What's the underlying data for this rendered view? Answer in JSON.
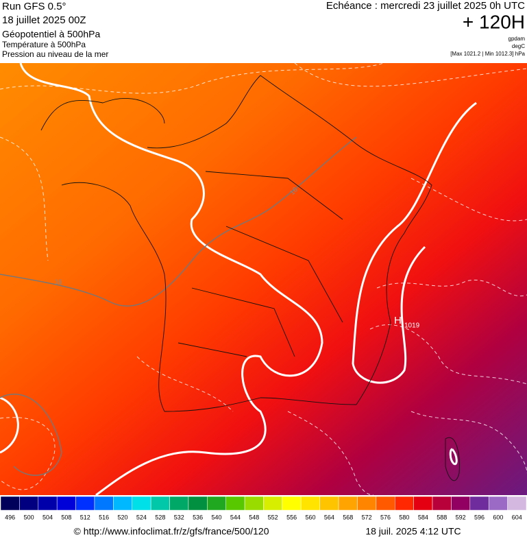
{
  "header": {
    "run": "Run GFS 0.5°",
    "date": "18 juillet 2025 00Z",
    "layer1": "Géopotentiel à 500hPa",
    "layer2": "Température à 500hPa",
    "layer3": "Pression au niveau de la mer",
    "echeance": "Echéance : mercredi 23 juillet 2025 0h UTC",
    "lead": "+ 120H",
    "unit1": "gpdam",
    "unit2": "degC",
    "extremes": "[Max 1021.2 | Min 1012.3] hPa"
  },
  "map": {
    "labels": [
      "16",
      "16"
    ],
    "high": {
      "symbol": "H",
      "value": "1019"
    }
  },
  "colorbar": {
    "ticks": [
      496,
      500,
      504,
      508,
      512,
      516,
      520,
      524,
      528,
      532,
      536,
      540,
      544,
      548,
      552,
      556,
      560,
      564,
      568,
      572,
      576,
      580,
      584,
      588,
      592,
      596,
      600,
      604
    ],
    "colors": [
      "#00005a",
      "#000080",
      "#0000aa",
      "#0000d8",
      "#0030ff",
      "#0078ff",
      "#00b8ff",
      "#00e0e8",
      "#00c8a8",
      "#00a868",
      "#009040",
      "#20a820",
      "#58c800",
      "#98dc00",
      "#d8ee00",
      "#ffff00",
      "#ffe400",
      "#ffc400",
      "#ffa400",
      "#ff8400",
      "#ff5a00",
      "#ff2800",
      "#e40010",
      "#b8003a",
      "#920062",
      "#6e2c9c",
      "#9a6ac4",
      "#d4b8e0"
    ]
  },
  "footer": {
    "url": "© http://www.infoclimat.fr/z/gfs/france/500/120",
    "stamp": "18 juil. 2025  4:12 UTC"
  }
}
